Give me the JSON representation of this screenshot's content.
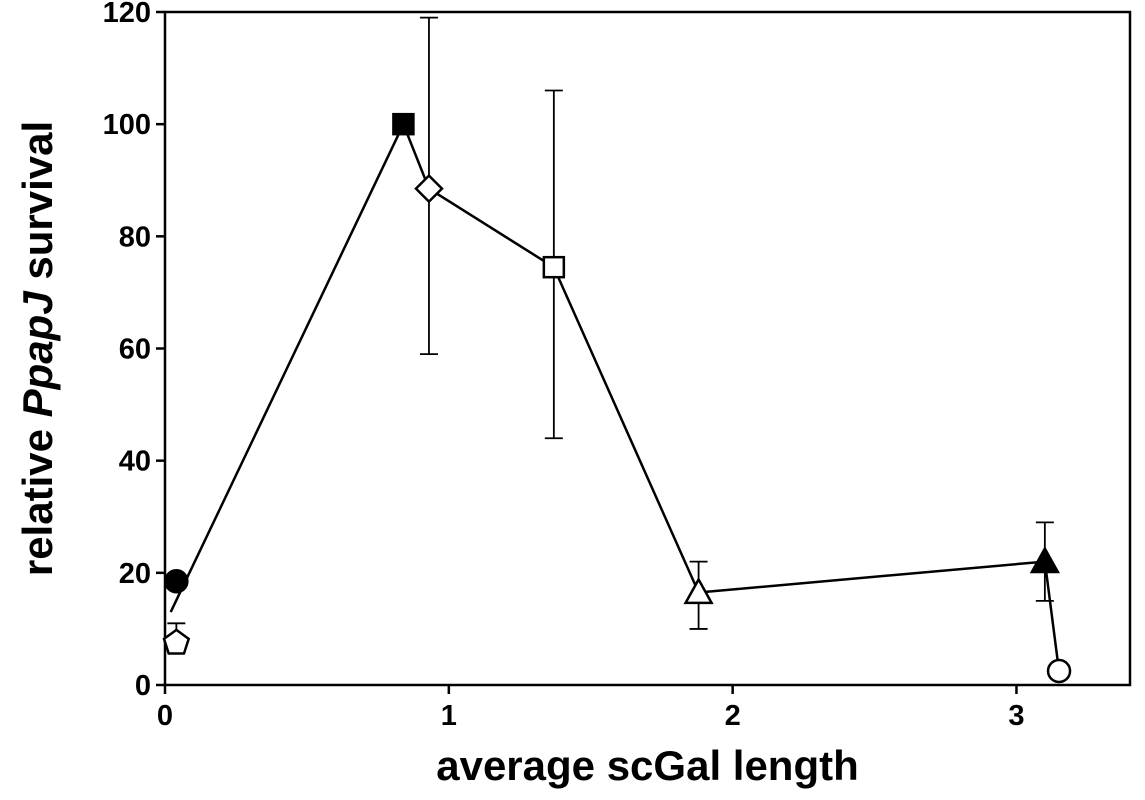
{
  "chart_data": {
    "type": "scatter",
    "xlabel": "average scGal length",
    "ylabel": {
      "prefix": "relative ",
      "italic": "PpapJ",
      "suffix": " survival"
    },
    "xlim": [
      0,
      3.4
    ],
    "ylim": [
      0,
      120
    ],
    "x_ticks": [
      0,
      1,
      2,
      3
    ],
    "y_ticks": [
      0,
      20,
      40,
      60,
      80,
      100,
      120
    ],
    "x_tick_labels": [
      "0",
      "1",
      "2",
      "3"
    ],
    "y_tick_labels": [
      "0",
      "20",
      "40",
      "60",
      "80",
      "100",
      "120"
    ],
    "grid": false,
    "connecting_line": {
      "x": [
        0.02,
        0.84,
        0.93,
        1.37,
        1.88,
        3.1,
        3.15
      ],
      "y": [
        13,
        100,
        88.5,
        74.5,
        16.5,
        22,
        2.5
      ]
    },
    "points": [
      {
        "x": 0.04,
        "y": 18.5,
        "marker": "circle",
        "fill": "#000000",
        "err_low": null,
        "err_high": null
      },
      {
        "x": 0.04,
        "y": 7.5,
        "marker": "pentagon",
        "fill": "#ffffff",
        "err_low": 7,
        "err_high": 11
      },
      {
        "x": 0.84,
        "y": 100,
        "marker": "square",
        "fill": "#000000",
        "err_low": null,
        "err_high": null
      },
      {
        "x": 0.93,
        "y": 88.5,
        "marker": "diamond",
        "fill": "#ffffff",
        "err_low": 59,
        "err_high": 119
      },
      {
        "x": 1.37,
        "y": 74.5,
        "marker": "square",
        "fill": "#ffffff",
        "err_low": 44,
        "err_high": 106
      },
      {
        "x": 1.88,
        "y": 16.5,
        "marker": "triangle",
        "fill": "#ffffff",
        "err_low": 10,
        "err_high": 22
      },
      {
        "x": 3.1,
        "y": 22,
        "marker": "triangle",
        "fill": "#000000",
        "err_low": 15,
        "err_high": 29
      },
      {
        "x": 3.15,
        "y": 2.5,
        "marker": "circle",
        "fill": "#ffffff",
        "err_low": null,
        "err_high": null
      }
    ],
    "colors": {
      "line": "#000000",
      "marker_stroke": "#000000"
    }
  }
}
